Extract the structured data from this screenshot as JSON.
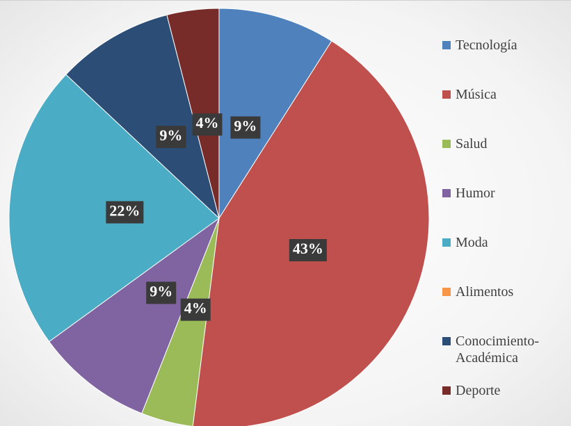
{
  "chart_data": {
    "type": "pie",
    "categories": [
      "Tecnología",
      "Música",
      "Salud",
      "Humor",
      "Moda",
      "Alimentos",
      "Conocimiento-Académica",
      "Deporte"
    ],
    "values": [
      9,
      43,
      4,
      9,
      22,
      0,
      9,
      4
    ],
    "value_labels": [
      "9%",
      "43%",
      "4%",
      "9%",
      "22%",
      null,
      "9%",
      "4%"
    ],
    "colors": [
      "#4f81bd",
      "#c0504d",
      "#9bbb59",
      "#8064a2",
      "#4bacc6",
      "#f79646",
      "#2c4d75",
      "#772c2a"
    ],
    "legend": "right"
  }
}
